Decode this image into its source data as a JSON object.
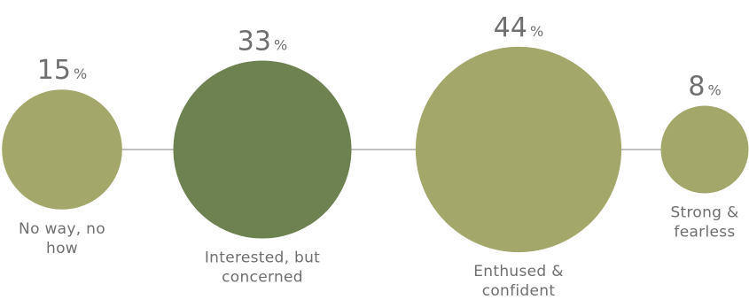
{
  "chart_data": {
    "type": "bubble",
    "title": "",
    "categories": [
      {
        "label": "No way, no how",
        "label_lines": [
          "No way, no",
          "how"
        ],
        "value": 15,
        "color": "#a3a76a"
      },
      {
        "label": "Interested, but concerned",
        "label_lines": [
          "Interested, but",
          "concerned"
        ],
        "value": 33,
        "color": "#6e8251"
      },
      {
        "label": "Enthused & confident",
        "label_lines": [
          "Enthused &",
          "confident"
        ],
        "value": 44,
        "color": "#a3a76a"
      },
      {
        "label": "Strong & fearless",
        "label_lines": [
          "Strong &",
          "fearless"
        ],
        "value": 8,
        "color": "#a3a76a"
      }
    ],
    "unit": "%",
    "connector_color": "#9a9a9a",
    "text_color": "#6f6f6f"
  }
}
